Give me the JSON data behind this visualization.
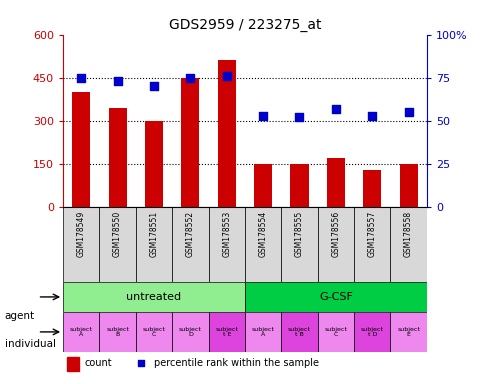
{
  "title": "GDS2959 / 223275_at",
  "samples": [
    "GSM178549",
    "GSM178550",
    "GSM178551",
    "GSM178552",
    "GSM178553",
    "GSM178554",
    "GSM178555",
    "GSM178556",
    "GSM178557",
    "GSM178558"
  ],
  "counts": [
    400,
    345,
    300,
    450,
    510,
    150,
    148,
    170,
    128,
    150
  ],
  "percentile": [
    75,
    73,
    70,
    75,
    76,
    53,
    52,
    57,
    53,
    55
  ],
  "ylim_left": [
    0,
    600
  ],
  "ylim_right": [
    0,
    100
  ],
  "yticks_left": [
    0,
    150,
    300,
    450,
    600
  ],
  "ytick_labels_left": [
    "0",
    "150",
    "300",
    "450",
    "600"
  ],
  "yticks_right": [
    0,
    25,
    50,
    75,
    100
  ],
  "ytick_labels_right": [
    "0",
    "25",
    "50",
    "75",
    "100%"
  ],
  "bar_color": "#cc0000",
  "dot_color": "#0000cc",
  "agent_groups": [
    {
      "label": "untreated",
      "start": 0,
      "end": 5,
      "color": "#90ee90"
    },
    {
      "label": "G-CSF",
      "start": 5,
      "end": 10,
      "color": "#00cc44"
    }
  ],
  "individual_labels": [
    "subject\nA",
    "subject\nB",
    "subject\nC",
    "subject\nD",
    "subject\nt E",
    "subject\nA",
    "subject\nt B",
    "subject\nC",
    "subject\nt D",
    "subject\nE"
  ],
  "individual_highlighted": [
    4,
    6,
    8
  ],
  "individual_color_normal": "#ee88ee",
  "individual_color_highlight": "#dd44dd",
  "hgrid_values": [
    150,
    300,
    450
  ],
  "xlabel_area_color": "#d8d8d8",
  "legend_count_color": "#cc0000",
  "legend_dot_color": "#0000cc",
  "legend_count_label": "count",
  "legend_dot_label": "percentile rank within the sample"
}
